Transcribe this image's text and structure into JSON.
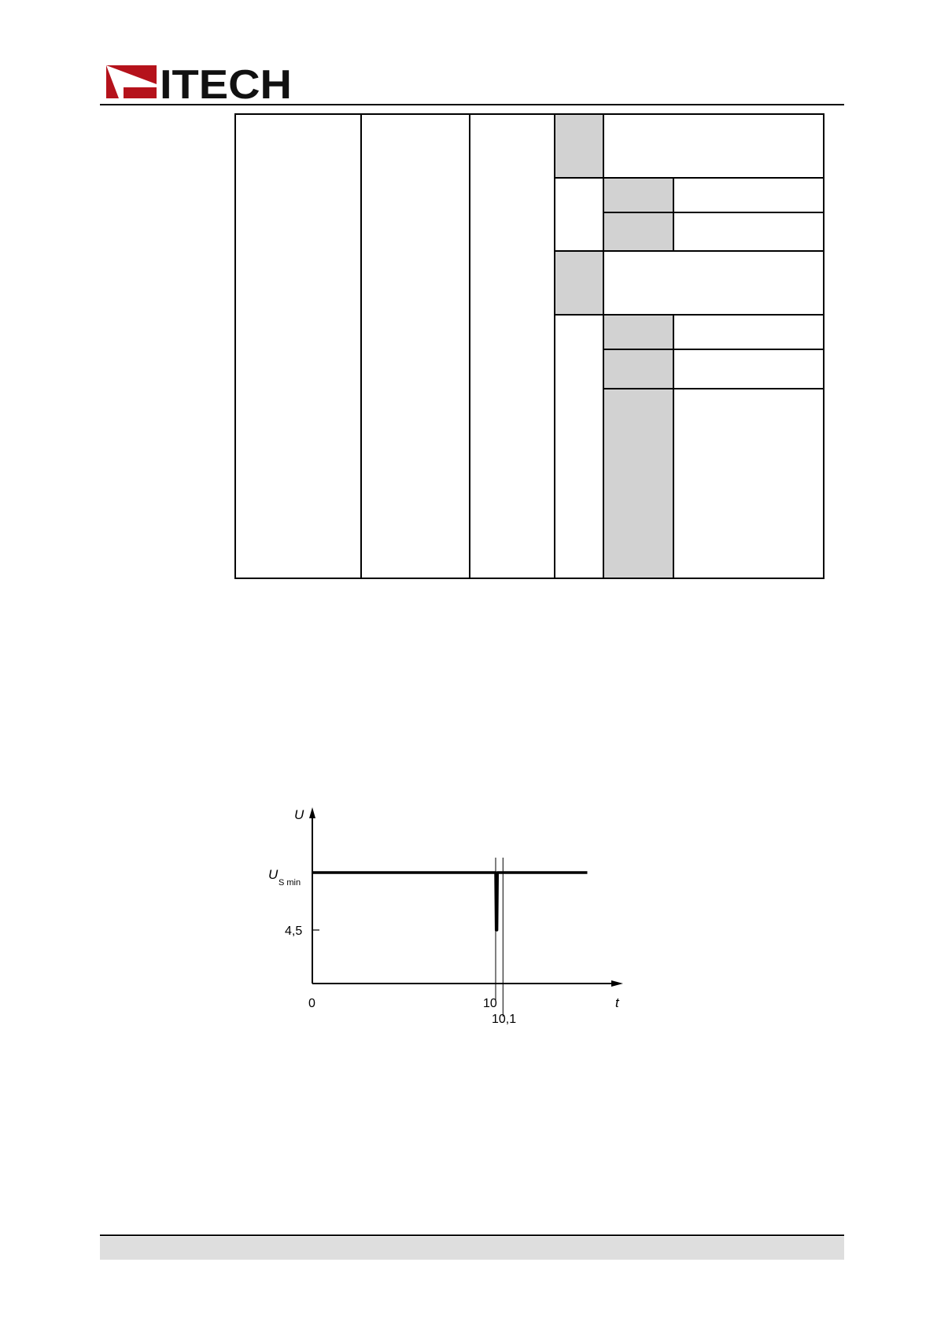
{
  "header": {
    "logo_text": "ITECH",
    "logo_badge_text": "ITECH",
    "brand_color": "#b5121b"
  },
  "table": {
    "shaded_color": "#d2d2d2",
    "cells": []
  },
  "chart_data": {
    "type": "line",
    "title": "",
    "xlabel": "t",
    "ylabel": "U",
    "x_ticks": [
      "0",
      "10",
      "10,1"
    ],
    "y_ticks": [
      "U_S min",
      "4,5"
    ],
    "y_tick_main": "U",
    "y_tick_sub": "S min",
    "series": [
      {
        "x": [
          0,
          10,
          10.03,
          10.07,
          10.1,
          15
        ],
        "y": [
          "U_S min",
          "U_S min",
          4.5,
          4.5,
          "U_S min",
          "U_S min"
        ]
      }
    ],
    "grid": false,
    "legend": "none"
  }
}
